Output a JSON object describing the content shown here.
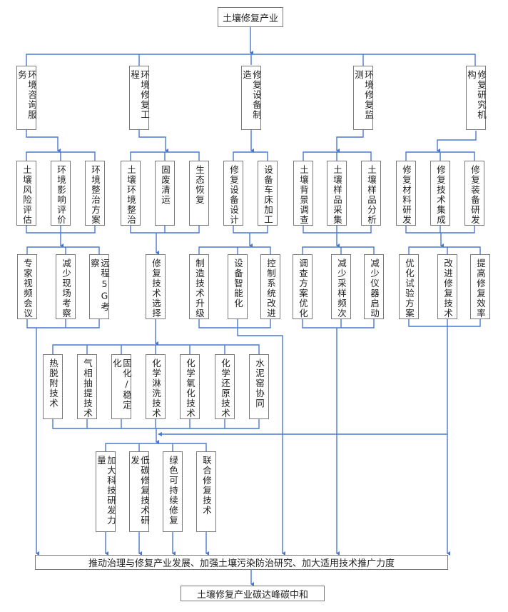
{
  "root": "土壤修复产业",
  "level1": [
    "环境咨询服务",
    "环境修复工程",
    "修复设备制造",
    "环境修复监测",
    "修复研究机构"
  ],
  "level2": [
    [
      "土壤风险评估",
      "环境影响评价",
      "环境整治方案"
    ],
    [
      "土壤环境整治",
      "固废清运",
      "生态恢复"
    ],
    [
      "修复设备设计",
      "设备车床加工"
    ],
    [
      "土壤背景调查",
      "土壤样品采集",
      "土壤样品分析"
    ],
    [
      "修复材料研发",
      "修复技术集成",
      "修复装备研发"
    ]
  ],
  "level3": [
    [
      "专家视频会议",
      "减少现场考察",
      "远程5G考察"
    ],
    [
      "修复技术选择"
    ],
    [
      "制造技术升级",
      "设备智能化",
      "控制系统改进"
    ],
    [
      "调查方案优化",
      "减少采样频次",
      "减少仪器启动"
    ],
    [
      "优化试验方案",
      "改进修复技术",
      "提高修复效率"
    ]
  ],
  "techniques": [
    "热脱附技术",
    "气相抽提技术",
    "固化/稳定化",
    "化学淋洗技术",
    "化学氧化技术",
    "化学还原技术",
    "水泥窑协同"
  ],
  "measures": [
    "加大科技研发力量",
    "低碳修复技术研发",
    "绿色可持续修复",
    "联合修复技术"
  ],
  "summary": "推动治理与修复产业发展、加强土壤污染防治研究、加大适用技术推广力度",
  "goal": "土壤修复产业碳达峰碳中和",
  "colors": {
    "connector": "#4a78d0",
    "box_border": "#7a7a7a"
  }
}
